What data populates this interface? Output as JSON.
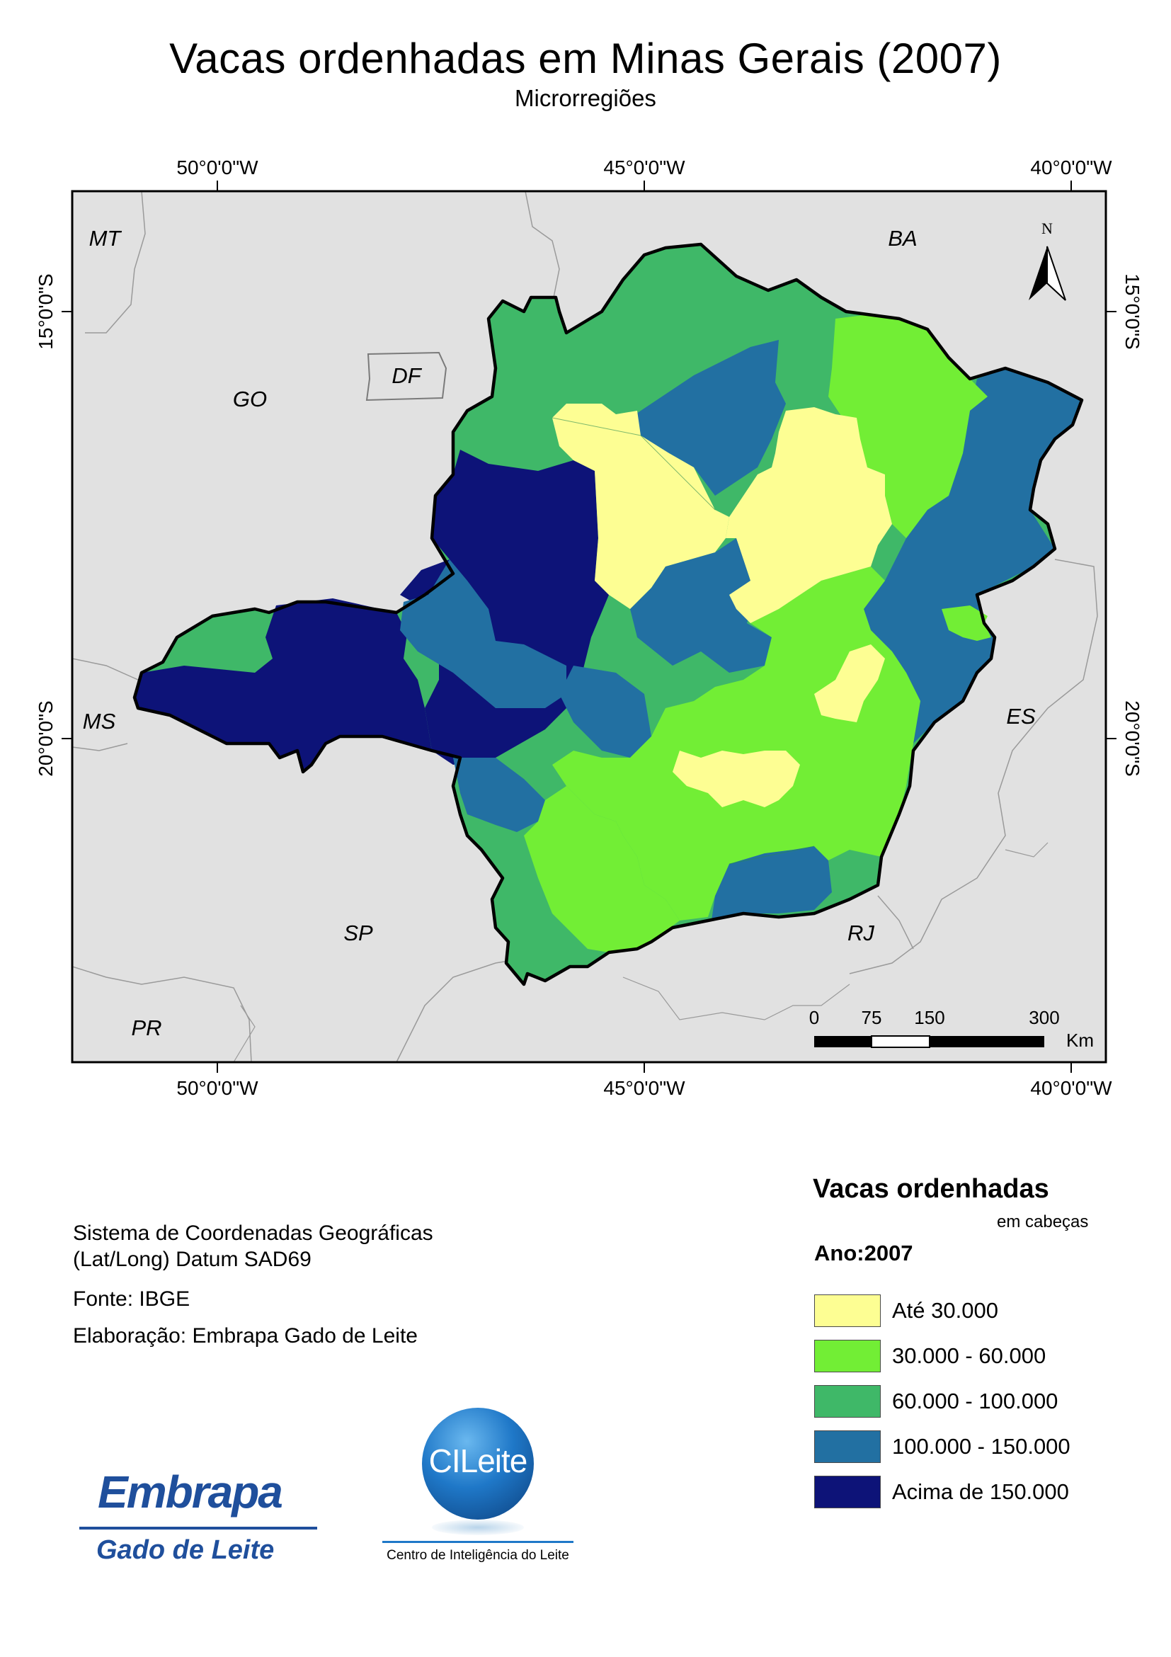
{
  "title": "Vacas ordenhadas em Minas Gerais (2007)",
  "subtitle": "Microrregiões",
  "map": {
    "longitude_labels": [
      "50°0'0\"W",
      "45°0'0\"W",
      "40°0'0\"W"
    ],
    "latitude_labels": [
      "15°0'0\"S",
      "20°0'0\"S"
    ],
    "neighbor_states": [
      "MT",
      "BA",
      "DF",
      "GO",
      "MS",
      "ES",
      "SP",
      "RJ",
      "PR"
    ],
    "north_arrow": "N",
    "scale_bar": {
      "ticks": [
        "0",
        "75",
        "150",
        "300"
      ],
      "unit": "Km"
    },
    "colors": {
      "background": "#e1e1e1",
      "class_1": "#fdfe93",
      "class_2": "#72ee35",
      "class_3": "#3fb868",
      "class_4": "#2270a2",
      "class_5": "#0d1378"
    }
  },
  "info": {
    "coord_line1": "Sistema de Coordenadas Geográficas",
    "coord_line2": "(Lat/Long) Datum SAD69",
    "source": "Fonte: IBGE",
    "author": "Elaboração: Embrapa Gado de Leite"
  },
  "legend": {
    "title": "Vacas ordenhadas",
    "unit": "em cabeças",
    "year": "Ano:2007",
    "items": [
      {
        "label": "Até 30.000",
        "color": "#fdfe93"
      },
      {
        "label": "30.000 - 60.000",
        "color": "#72ee35"
      },
      {
        "label": "60.000 - 100.000",
        "color": "#3fb868"
      },
      {
        "label": "100.000 - 150.000",
        "color": "#2270a2"
      },
      {
        "label": "Acima de 150.000",
        "color": "#0d1378"
      }
    ]
  },
  "logos": {
    "embrapa_word": "Embrapa",
    "embrapa_sub": "Gado de Leite",
    "cileite_word": "CILeite",
    "cileite_caption": "Centro de Inteligência do Leite"
  }
}
